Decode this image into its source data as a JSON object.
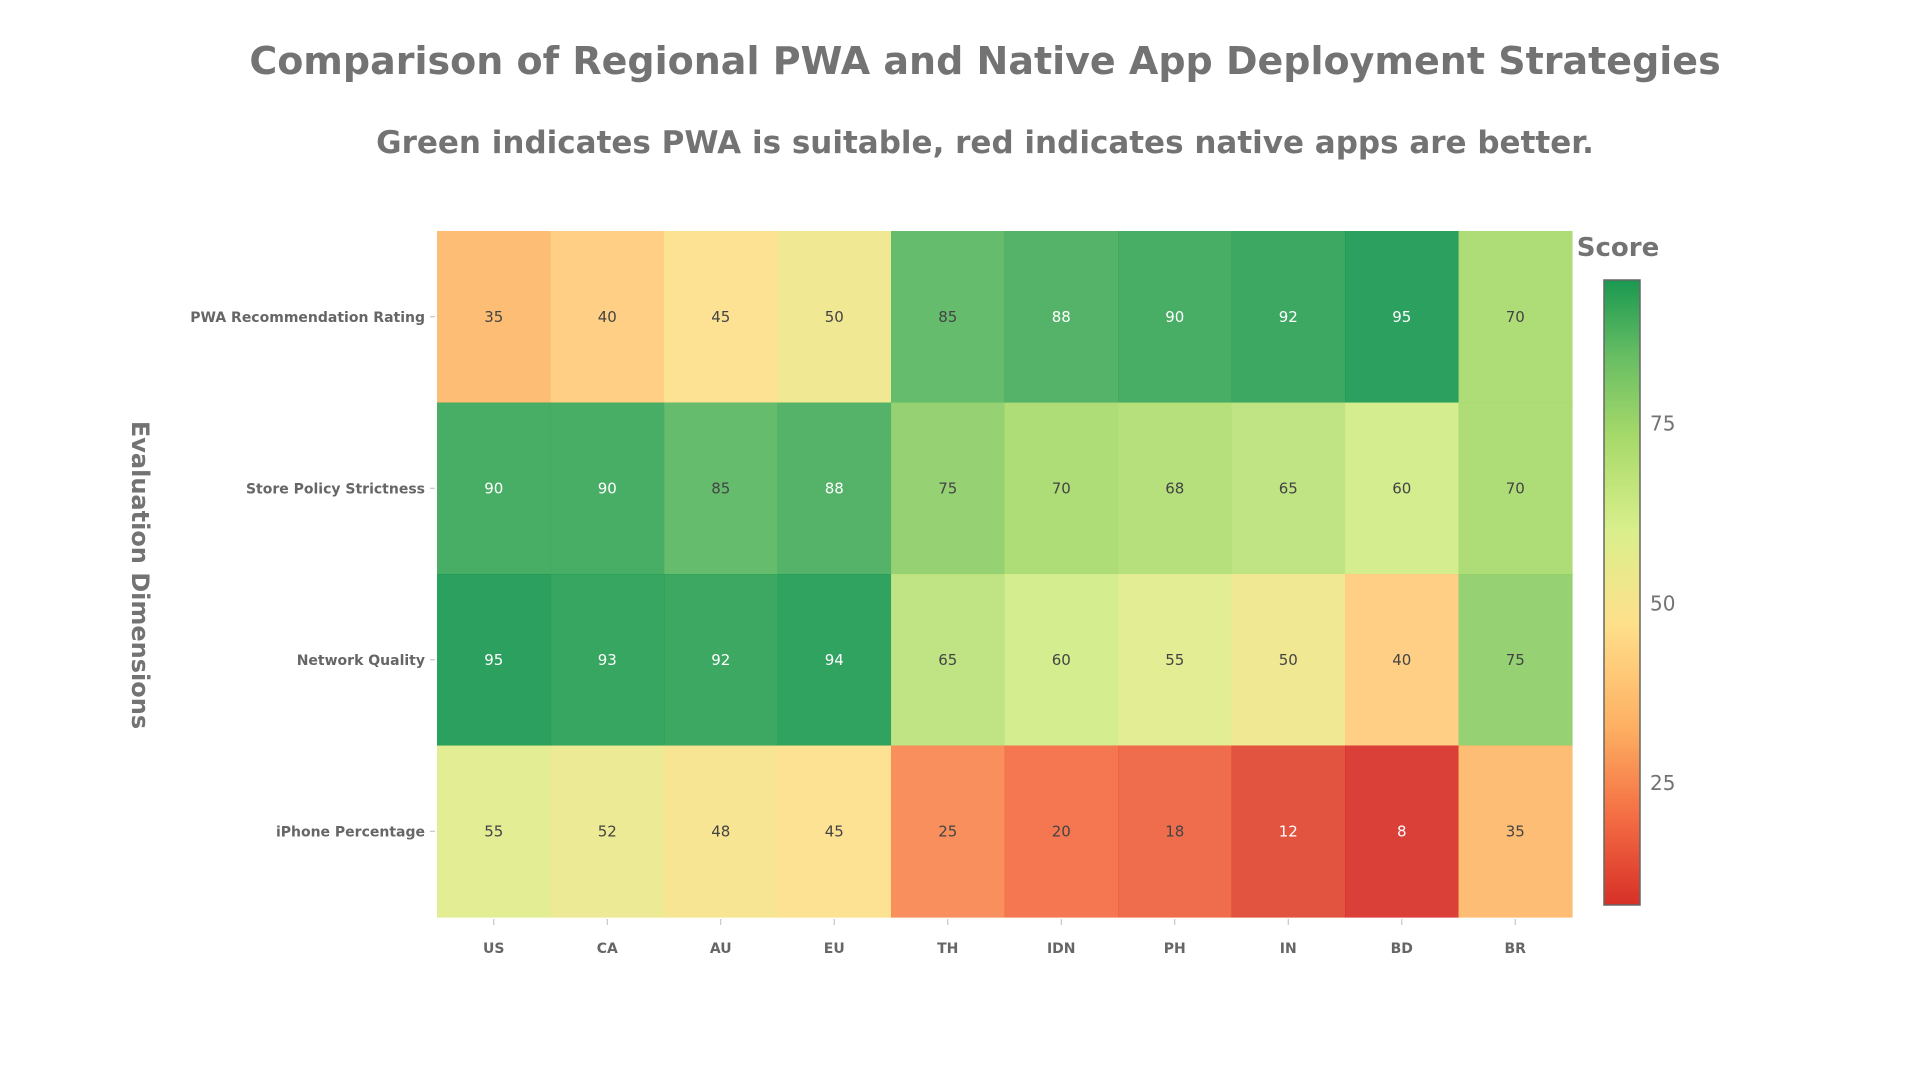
{
  "chart_data": {
    "type": "heatmap",
    "title": "Comparison of Regional PWA and Native App Deployment Strategies",
    "subtitle": "Green indicates PWA is suitable, red indicates native apps are better.",
    "xlabel": "",
    "ylabel": "Evaluation Dimensions",
    "colorbar_title": "Score",
    "colorbar_ticks": [
      25,
      50,
      75
    ],
    "zlim": [
      8,
      95
    ],
    "colorscale": [
      "#d73027",
      "#f46d43",
      "#fdae61",
      "#fee08b",
      "#d9ef8b",
      "#a6d96a",
      "#66bd63",
      "#1a9850"
    ],
    "categories": [
      "US",
      "CA",
      "AU",
      "EU",
      "TH",
      "IDN",
      "PH",
      "IN",
      "BD",
      "BR"
    ],
    "rows": [
      "PWA Recommendation Rating",
      "Store Policy Strictness",
      "Network Quality",
      "iPhone Percentage"
    ],
    "values": [
      [
        35,
        40,
        45,
        50,
        85,
        88,
        90,
        92,
        95,
        70
      ],
      [
        90,
        90,
        85,
        88,
        75,
        70,
        68,
        65,
        60,
        70
      ],
      [
        95,
        93,
        92,
        94,
        65,
        60,
        55,
        50,
        40,
        75
      ],
      [
        55,
        52,
        48,
        45,
        25,
        20,
        18,
        12,
        8,
        35
      ]
    ]
  }
}
